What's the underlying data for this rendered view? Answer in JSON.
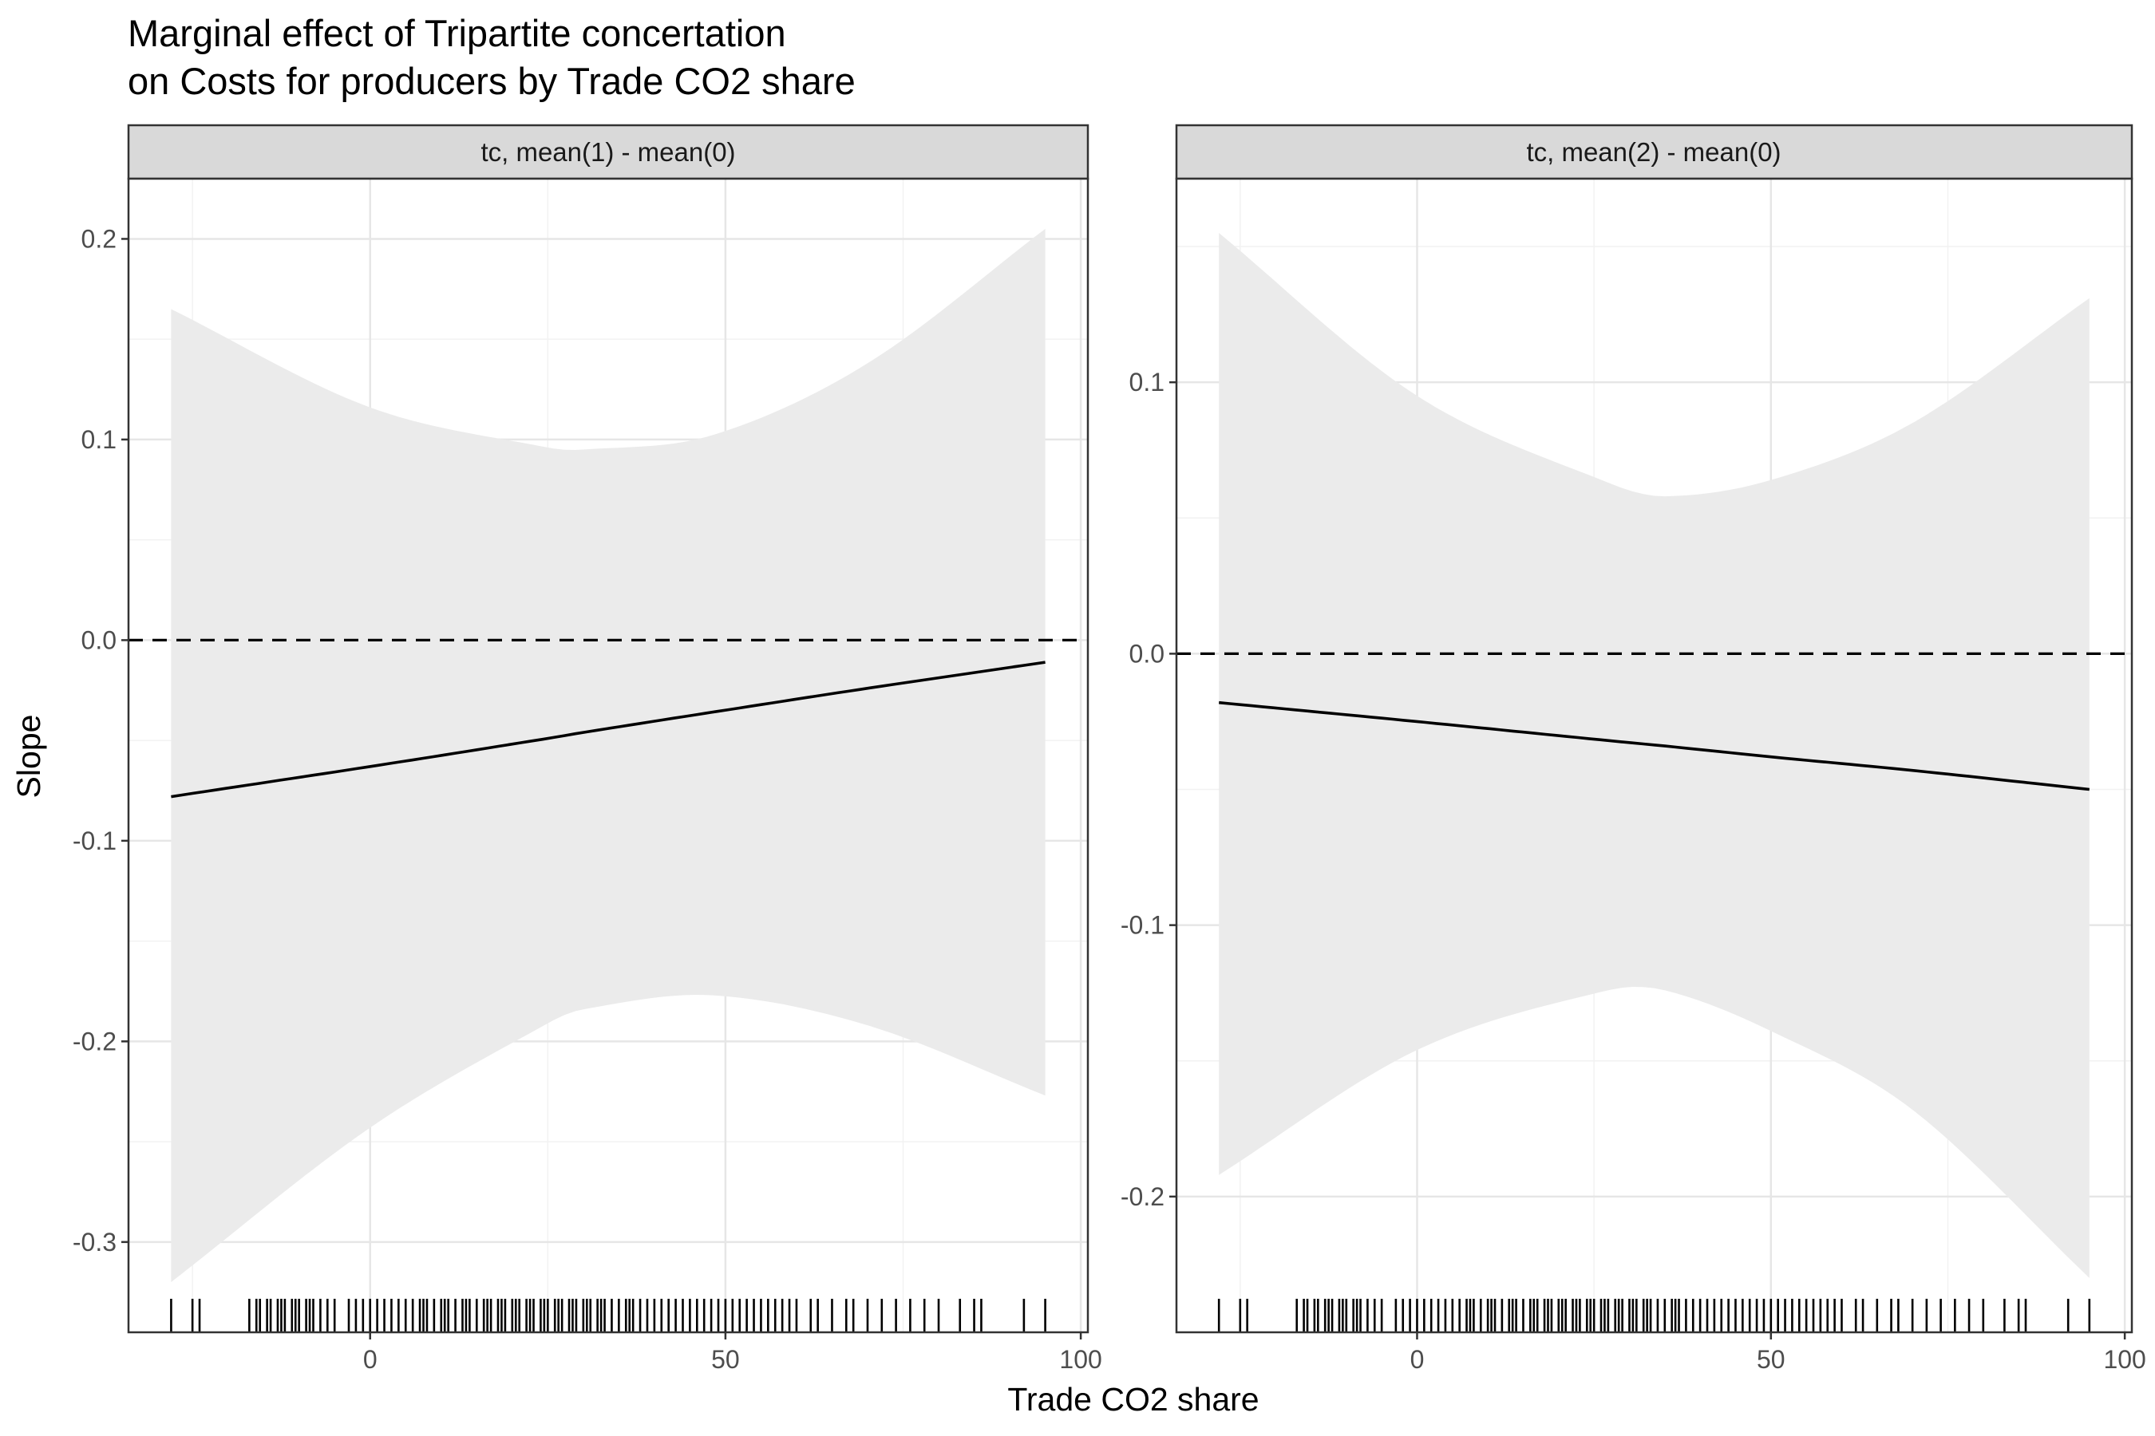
{
  "chart_data": {
    "title_lines": [
      "Marginal effect of Tripartite concertation",
      "on Costs for producers by Trade CO2 share"
    ],
    "xlabel": "Trade CO2 share",
    "ylabel": "Slope",
    "colors": {
      "ribbon": "#ebebeb",
      "line": "#000000",
      "strip_fill": "#d9d9d9",
      "grid": "#ebebeb",
      "panel_border": "#333333"
    },
    "x_ticks": [
      "0",
      "50",
      "100"
    ],
    "x_tick_values": [
      0,
      50,
      100
    ],
    "rug": [
      -28,
      -25,
      -24,
      -17,
      -16,
      -15.5,
      -14.5,
      -14,
      -13,
      -12.5,
      -12,
      -11,
      -10.5,
      -10,
      -9,
      -8.5,
      -8,
      -7,
      -6,
      -5,
      -3,
      -2,
      -1,
      0,
      1,
      2,
      3,
      4,
      5,
      6,
      7,
      7.5,
      8,
      9,
      10,
      10.5,
      11,
      12,
      13,
      13.5,
      14,
      15,
      16,
      16.5,
      17,
      18,
      18.5,
      19,
      20,
      20.5,
      21,
      22,
      22.5,
      23,
      24,
      24.5,
      25,
      26,
      26.5,
      27,
      28,
      28.5,
      29,
      30,
      30.5,
      31,
      32,
      32.5,
      33,
      34,
      35,
      36,
      36.5,
      37,
      38,
      39,
      40,
      41,
      42,
      43,
      44,
      45,
      46,
      47,
      48,
      49,
      50,
      51,
      52,
      53,
      54,
      55,
      56,
      57,
      58,
      59,
      60,
      62,
      63,
      65,
      67,
      68,
      70,
      72,
      74,
      76,
      78,
      80,
      83,
      85,
      86,
      92,
      95
    ],
    "panels": [
      {
        "strip": "tc, mean(1) - mean(0)",
        "ylim": [
          -0.345,
          0.23
        ],
        "xlim": [
          -34,
          101
        ],
        "y_ticks": [
          "0.2",
          "0.1",
          "0.0",
          "-0.1",
          "-0.2",
          "-0.3"
        ],
        "y_tick_values": [
          0.2,
          0.1,
          0.0,
          -0.1,
          -0.2,
          -0.3
        ],
        "x": [
          -28,
          0,
          25,
          30,
          48,
          70,
          95
        ],
        "estimate": [
          -0.078,
          -0.063,
          -0.049,
          -0.046,
          -0.036,
          -0.024,
          -0.011
        ],
        "upper": [
          0.165,
          0.116,
          0.096,
          0.095,
          0.102,
          0.138,
          0.205
        ],
        "lower": [
          -0.32,
          -0.243,
          -0.191,
          -0.184,
          -0.177,
          -0.192,
          -0.227
        ]
      },
      {
        "strip": "tc, mean(2) - mean(0)",
        "ylim": [
          -0.25,
          0.175
        ],
        "xlim": [
          -34,
          101
        ],
        "y_ticks": [
          "0.1",
          "0.0",
          "-0.1",
          "-0.2"
        ],
        "y_tick_values": [
          0.1,
          0.0,
          -0.1,
          -0.2
        ],
        "x": [
          -28,
          0,
          27,
          35,
          50,
          70,
          95
        ],
        "estimate": [
          -0.018,
          -0.025,
          -0.032,
          -0.034,
          -0.038,
          -0.043,
          -0.05
        ],
        "upper": [
          0.155,
          0.095,
          0.063,
          0.058,
          0.064,
          0.085,
          0.131
        ],
        "lower": [
          -0.192,
          -0.146,
          -0.124,
          -0.124,
          -0.139,
          -0.168,
          -0.23
        ]
      }
    ]
  }
}
